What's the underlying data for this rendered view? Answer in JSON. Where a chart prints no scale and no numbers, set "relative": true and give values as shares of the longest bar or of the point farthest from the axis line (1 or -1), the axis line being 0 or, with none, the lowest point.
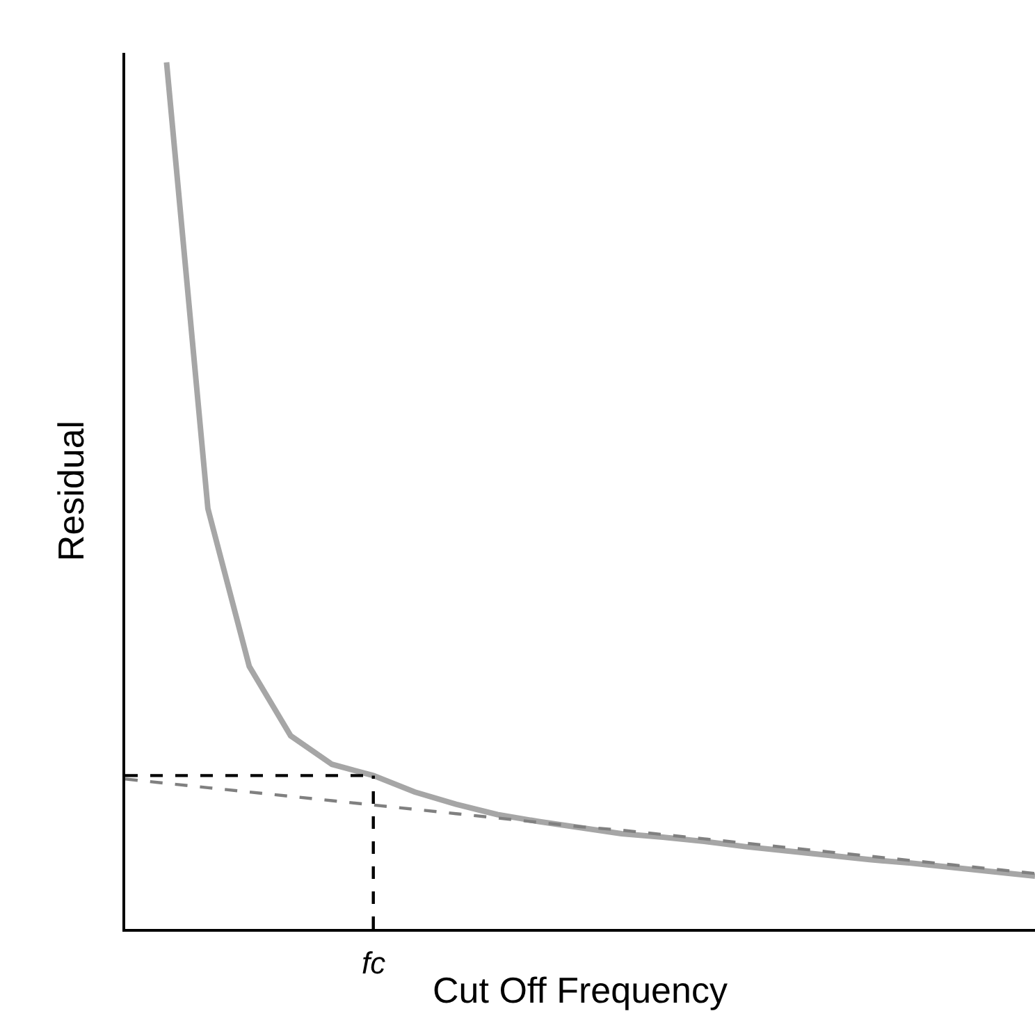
{
  "chart_data": {
    "type": "line",
    "relative": true,
    "xlabel": "Cut Off Frequency",
    "ylabel": "Residual",
    "marker": "none",
    "categories": [
      null,
      null,
      null,
      null,
      null,
      null,
      null,
      null,
      null,
      null,
      null,
      null,
      null,
      null,
      null,
      null,
      null,
      null,
      null,
      null,
      null,
      null,
      null
    ],
    "series": [
      {
        "color": "#a6a6a6",
        "line_style": "solid",
        "values": [
          null,
          1.0,
          0.485,
          0.303,
          0.223,
          0.19,
          0.177,
          0.158,
          0.144,
          0.132,
          0.124,
          0.117,
          0.11,
          0.106,
          0.101,
          0.095,
          0.09,
          0.085,
          0.08,
          0.076,
          0.071,
          0.066,
          0.061
        ]
      },
      {
        "color": "#808080",
        "line_style": "dashed",
        "values": [
          0.173,
          0.168,
          0.163,
          0.158,
          0.153,
          0.148,
          0.143,
          0.138,
          0.133,
          0.128,
          0.123,
          0.118,
          0.114,
          0.109,
          0.104,
          0.099,
          0.094,
          0.089,
          0.084,
          0.079,
          0.074,
          0.069,
          0.064
        ]
      }
    ],
    "ref_lines": [
      {
        "axis": "y",
        "value": 0.177,
        "color": "#000000",
        "line_style": "dashed"
      }
    ],
    "annotations": [
      "fc"
    ]
  }
}
